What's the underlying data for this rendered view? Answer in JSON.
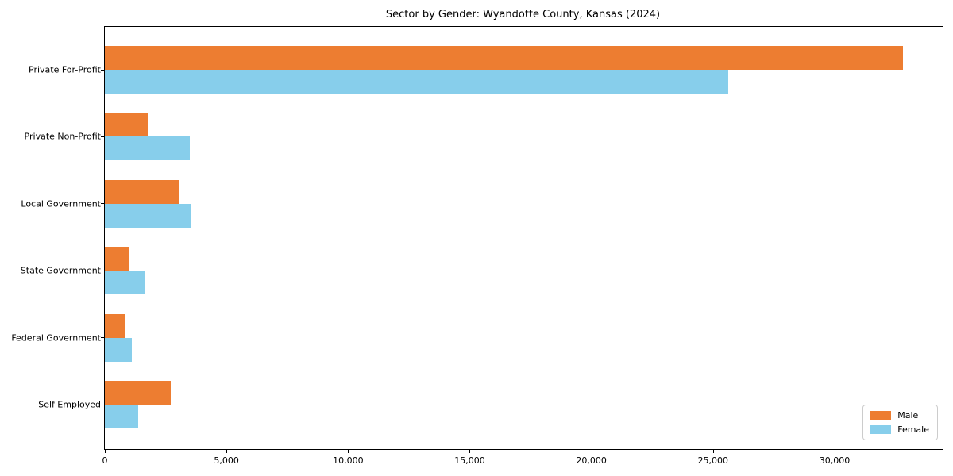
{
  "title": "Sector by Gender: Wyandotte County, Kansas (2024)",
  "colors": {
    "male": "#ed7d31",
    "female": "#87ceeb",
    "axis": "#000000",
    "legend_border": "#cccccc",
    "background": "#ffffff"
  },
  "chart_data": {
    "type": "bar",
    "orientation": "horizontal",
    "title": "Sector by Gender: Wyandotte County, Kansas (2024)",
    "xlabel": "",
    "ylabel": "",
    "categories": [
      "Private For-Profit",
      "Private Non-Profit",
      "Local Government",
      "State Government",
      "Federal Government",
      "Self-Employed"
    ],
    "series": [
      {
        "name": "Male",
        "color": "#ed7d31",
        "values": [
          32800,
          1770,
          3040,
          1020,
          810,
          2710
        ]
      },
      {
        "name": "Female",
        "color": "#87ceeb",
        "values": [
          25640,
          3490,
          3560,
          1620,
          1120,
          1370
        ]
      }
    ],
    "xlim": [
      0,
      34440
    ],
    "xticks": [
      0,
      5000,
      10000,
      15000,
      20000,
      25000,
      30000
    ],
    "xtick_labels": [
      "0",
      "5,000",
      "10,000",
      "15,000",
      "20,000",
      "25,000",
      "30,000"
    ],
    "legend_position": "lower right",
    "grid": false
  }
}
